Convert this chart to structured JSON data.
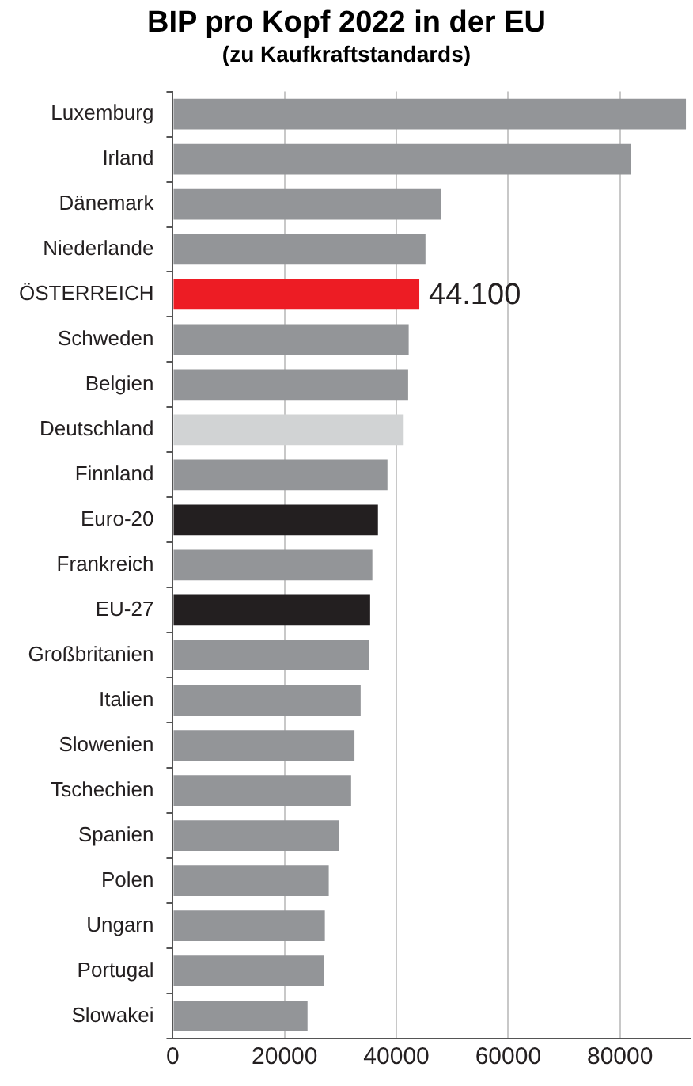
{
  "chart_data": {
    "type": "bar",
    "orientation": "horizontal",
    "title": "BIP pro Kopf 2022 in der EU",
    "subtitle": "(zu Kaufkraftstandards)",
    "categories": [
      "Luxemburg",
      "Irland",
      "Dänemark",
      "Niederlande",
      "ÖSTERREICH",
      "Schweden",
      "Belgien",
      "Deutschland",
      "Finnland",
      "Euro-20",
      "Frankreich",
      "EU-27",
      "Großbritanien",
      "Italien",
      "Slowenien",
      "Tschechien",
      "Spanien",
      "Polen",
      "Ungarn",
      "Portugal",
      "Slowakei"
    ],
    "values": [
      91800,
      81900,
      48000,
      45200,
      44100,
      42200,
      42100,
      41300,
      38400,
      36700,
      35700,
      35300,
      35100,
      33600,
      32500,
      31900,
      29800,
      27900,
      27200,
      27100,
      24100
    ],
    "value_labels": [
      null,
      null,
      null,
      null,
      "44.100",
      null,
      null,
      null,
      null,
      null,
      null,
      null,
      null,
      null,
      null,
      null,
      null,
      null,
      null,
      null,
      null
    ],
    "colors": [
      "#939598",
      "#939598",
      "#939598",
      "#939598",
      "#ed1c24",
      "#939598",
      "#939598",
      "#d1d3d4",
      "#939598",
      "#231f20",
      "#939598",
      "#231f20",
      "#939598",
      "#939598",
      "#939598",
      "#939598",
      "#939598",
      "#939598",
      "#939598",
      "#939598",
      "#939598"
    ],
    "xlim": [
      0,
      92500
    ],
    "xticks": [
      0,
      20000,
      40000,
      60000,
      80000
    ],
    "grid": "x",
    "legend": false
  }
}
